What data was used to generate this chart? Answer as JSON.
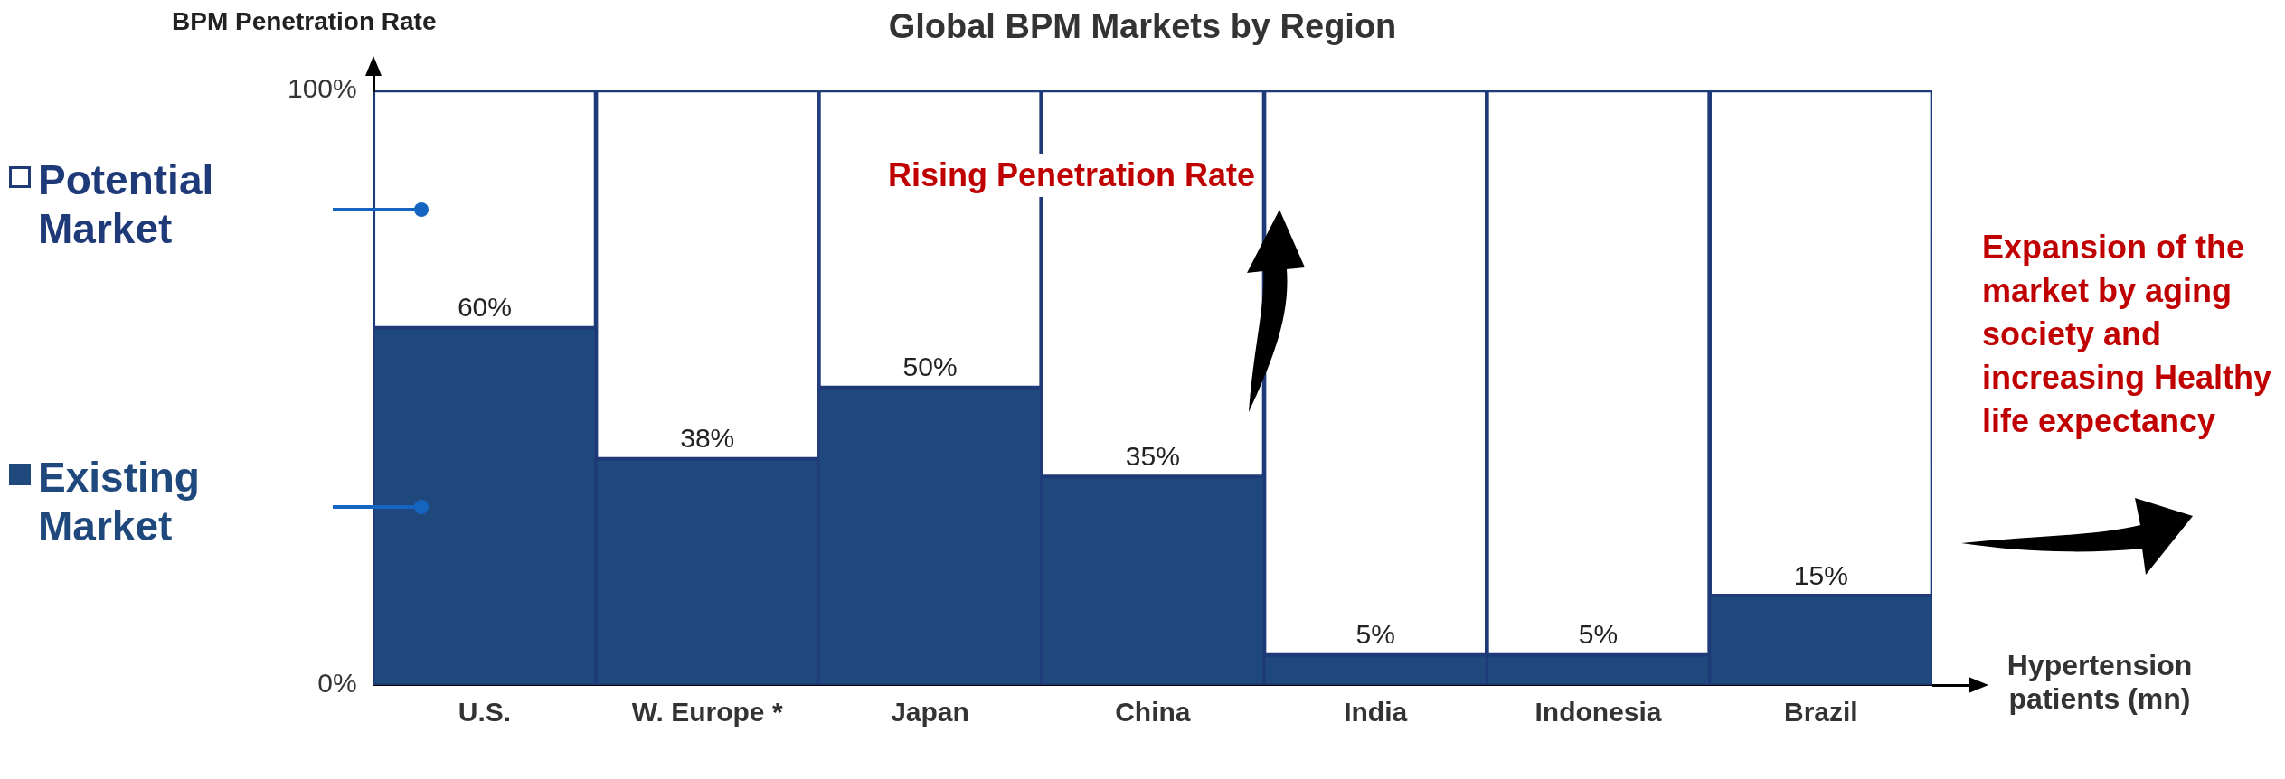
{
  "chart_data": {
    "type": "bar",
    "title": "Global BPM Markets by Region",
    "ylabel": "BPM Penetration Rate",
    "xlabel": "Hypertension patients (mn)",
    "categories": [
      "U.S.",
      "W. Europe *",
      "Japan",
      "China",
      "India",
      "Indonesia",
      "Brazil"
    ],
    "stacked": true,
    "legend": "left",
    "grid": false,
    "ylim": [
      0,
      100
    ],
    "yticks": [
      {
        "value": 0,
        "label": "0%"
      },
      {
        "value": 100,
        "label": "100%"
      }
    ],
    "series": [
      {
        "name": "Existing Market",
        "color": "#1f497d",
        "values": [
          60,
          38,
          50,
          35,
          5,
          5,
          15
        ],
        "value_labels": [
          "60%",
          "38%",
          "50%",
          "35%",
          "5%",
          "5%",
          "15%"
        ]
      },
      {
        "name": "Potential Market",
        "color": "#1f3a78",
        "values": [
          40,
          62,
          50,
          65,
          95,
          95,
          85
        ]
      }
    ],
    "annotations": [
      "Rising Penetration Rate",
      "Expansion of the market by aging society and increasing Healthy life expectancy"
    ]
  }
}
